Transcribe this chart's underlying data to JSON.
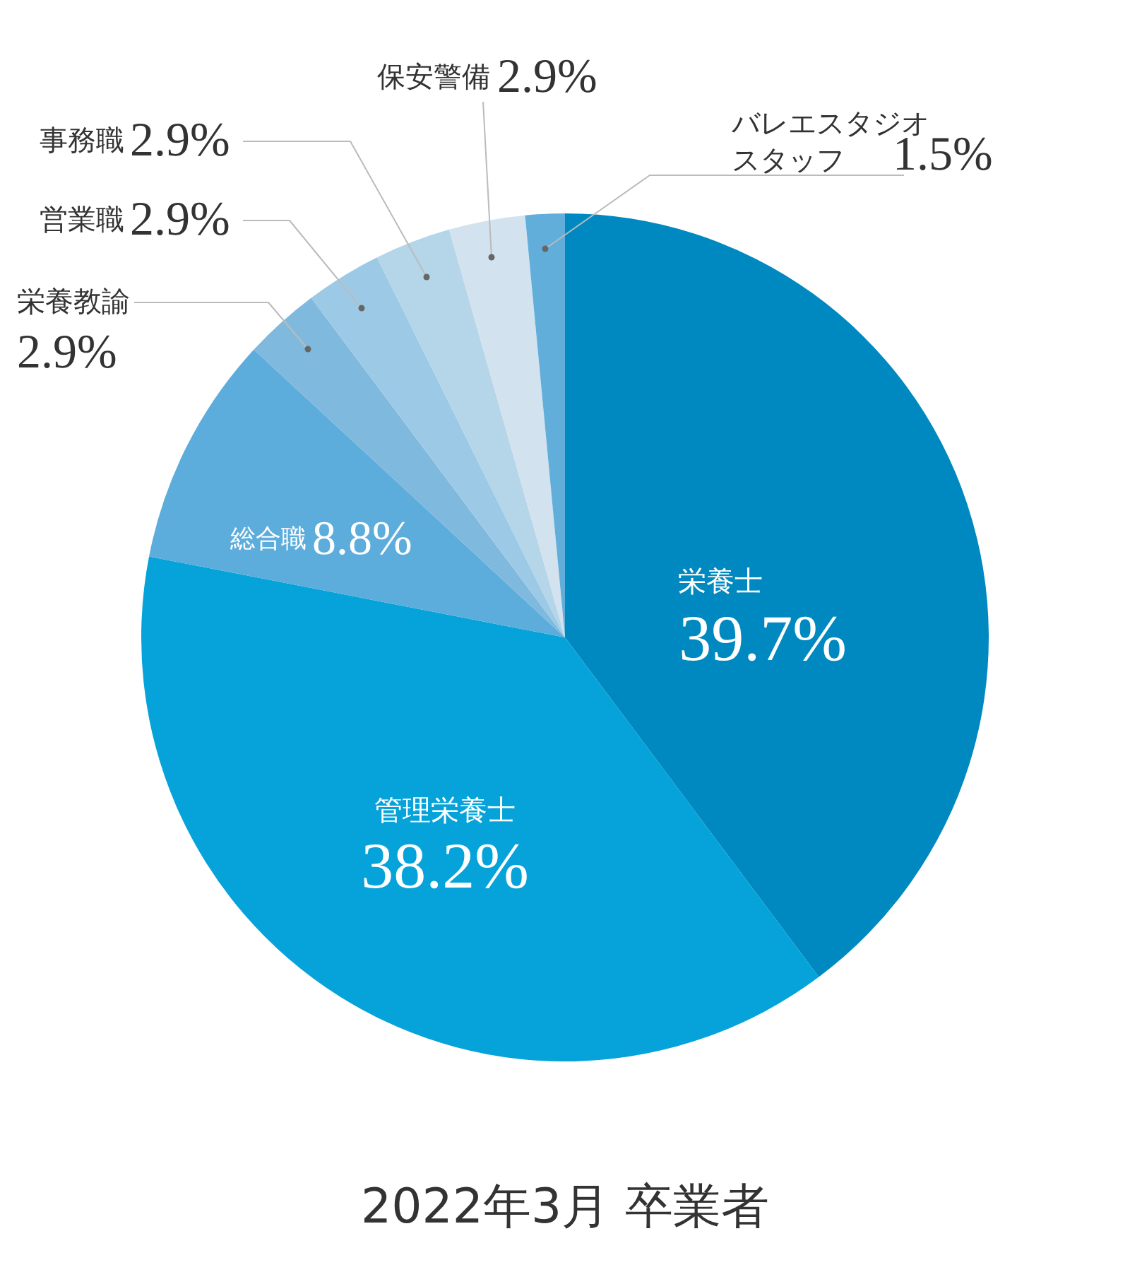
{
  "chart_data": {
    "type": "pie",
    "title": "2022年3月 卒業者",
    "categories": [
      "栄養士",
      "管理栄養士",
      "総合職",
      "栄養教諭",
      "営業職",
      "事務職",
      "保安警備",
      "バレエスタジオスタッフ"
    ],
    "values": [
      39.7,
      38.2,
      8.8,
      2.9,
      2.9,
      2.9,
      2.9,
      1.5
    ],
    "colors": [
      "#0089c0",
      "#05a3d9",
      "#5cacdc",
      "#7fbade",
      "#9ccae6",
      "#b5d5e8",
      "#d2e2ee",
      "#62aedb"
    ],
    "value_labels": [
      "39.7%",
      "38.2%",
      "8.8%",
      "2.9%",
      "2.9%",
      "2.9%",
      "2.9%",
      "1.5%"
    ]
  }
}
